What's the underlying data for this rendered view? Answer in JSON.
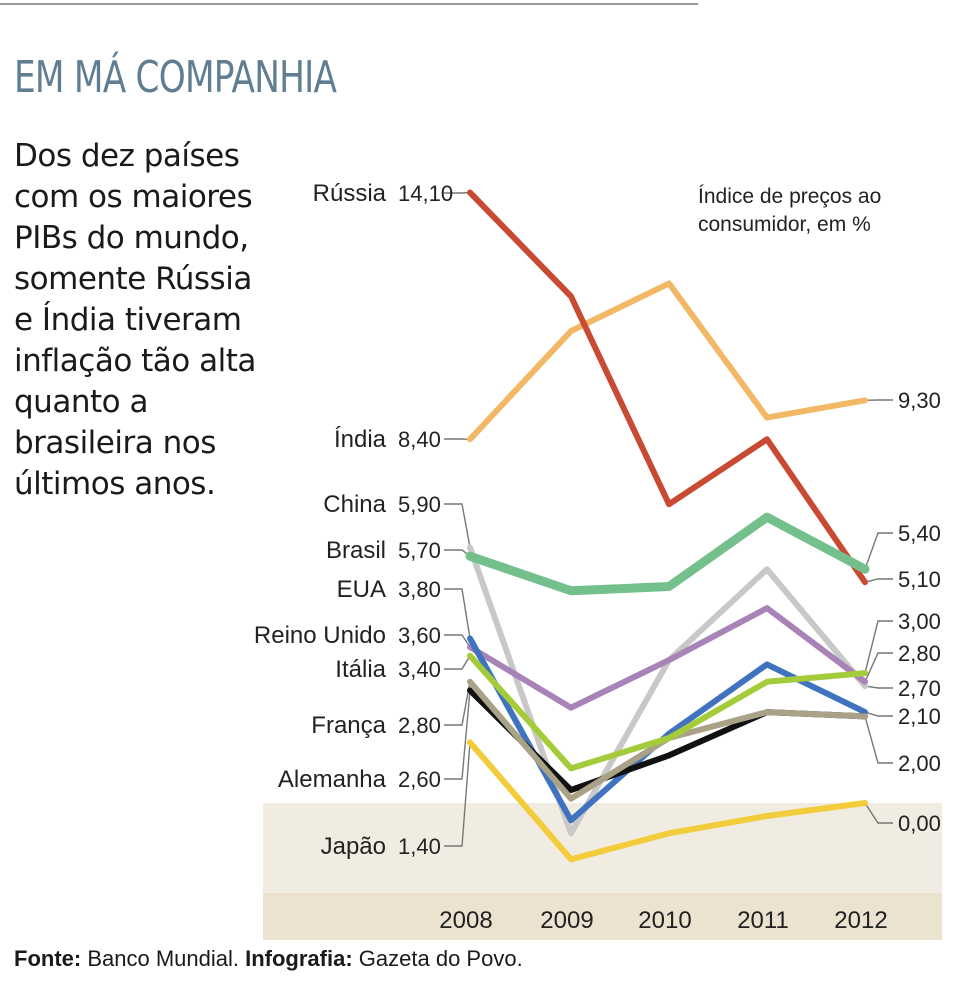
{
  "headline": "EM MÁ COMPANHIA",
  "intro": "Dos dez países com os maiores PIBs do mundo, somente Rússia e Índia tiveram inflação tão alta quanto a brasileira nos últimos anos.",
  "source": {
    "fonte_label": "Fonte:",
    "fonte_value": "Banco Mundial.",
    "info_label": "Infografia:",
    "info_value": "Gazeta do Povo."
  },
  "chart_data": {
    "type": "line",
    "ylabel": "Índice de preços ao consumidor, em %",
    "ylabel_lines": [
      "Índice de preços ao",
      "consumidor, em %"
    ],
    "x": [
      "2008",
      "2009",
      "2010",
      "2011",
      "2012"
    ],
    "series": [
      {
        "name": "Rússia",
        "color": "#c84a32",
        "start_label": "14,10",
        "end_label": "5,10",
        "values": [
          14.1,
          11.7,
          6.9,
          8.4,
          5.1
        ]
      },
      {
        "name": "Índia",
        "color": "#f2b865",
        "start_label": "8,40",
        "end_label": "9,30",
        "values": [
          8.4,
          10.9,
          12.0,
          8.9,
          9.3
        ]
      },
      {
        "name": "China",
        "color": "#c8c8c8",
        "start_label": "5,90",
        "end_label": "2,70",
        "values": [
          5.9,
          -0.7,
          3.3,
          5.4,
          2.7
        ]
      },
      {
        "name": "Brasil",
        "color": "#74c08c",
        "start_label": "5,70",
        "end_label": "5,40",
        "values": [
          5.7,
          4.9,
          5.0,
          6.6,
          5.4
        ]
      },
      {
        "name": "EUA",
        "color": "#3f73c0",
        "start_label": "3,80",
        "end_label": "2,10",
        "values": [
          3.8,
          -0.4,
          1.6,
          3.2,
          2.1
        ]
      },
      {
        "name": "Reino Unido",
        "color": "#a883b8",
        "start_label": "3,60",
        "end_label": "2,80",
        "values": [
          3.6,
          2.2,
          3.3,
          4.5,
          2.8
        ]
      },
      {
        "name": "Itália",
        "color": "#a4cc3a",
        "start_label": "3,40",
        "end_label": "3,00",
        "values": [
          3.4,
          0.8,
          1.5,
          2.8,
          3.0
        ]
      },
      {
        "name": "França",
        "color": "#aaa287",
        "start_label": "2,80",
        "end_label": "2,00",
        "values": [
          2.8,
          0.1,
          1.5,
          2.1,
          2.0
        ]
      },
      {
        "name": "Alemanha",
        "color": "#111111",
        "start_label": "2,60",
        "end_label": "2,00",
        "values": [
          2.6,
          0.3,
          1.1,
          2.1,
          2.0
        ]
      },
      {
        "name": "Japão",
        "color": "#f2cc3a",
        "start_label": "1,40",
        "end_label": "0,00",
        "values": [
          1.4,
          -1.3,
          -0.7,
          -0.3,
          0.0
        ]
      }
    ],
    "end_value_labels": [
      "9,30",
      "5,40",
      "5,10",
      "3,00",
      "2,80",
      "2,70",
      "2,10",
      "2,00",
      "0,00"
    ],
    "shaded_band": "below zero",
    "legend": "labels at line starts (left) and ends (right)"
  }
}
